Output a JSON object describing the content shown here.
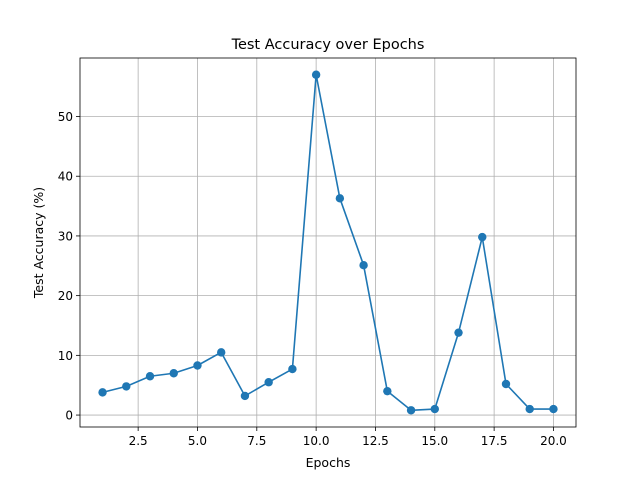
{
  "chart_data": {
    "type": "line",
    "title": "Test Accuracy over Epochs",
    "xlabel": "Epochs",
    "ylabel": "Test Accuracy (%)",
    "xlim": [
      0.05,
      20.95
    ],
    "ylim": [
      -2.0,
      59.8
    ],
    "xticks": [
      2.5,
      5.0,
      7.5,
      10.0,
      12.5,
      15.0,
      17.5,
      20.0
    ],
    "xtick_labels": [
      "2.5",
      "5.0",
      "7.5",
      "10.0",
      "12.5",
      "15.0",
      "17.5",
      "20.0"
    ],
    "yticks": [
      0,
      10,
      20,
      30,
      40,
      50
    ],
    "ytick_labels": [
      "0",
      "10",
      "20",
      "30",
      "40",
      "50"
    ],
    "grid": true,
    "series": [
      {
        "color": "#1f77b4",
        "marker": "circle",
        "x": [
          1,
          2,
          3,
          4,
          5,
          6,
          7,
          8,
          9,
          10,
          11,
          12,
          13,
          14,
          15,
          16,
          17,
          18,
          19,
          20
        ],
        "y": [
          3.8,
          4.8,
          6.5,
          7.0,
          8.3,
          10.5,
          3.2,
          5.5,
          7.7,
          57.0,
          36.3,
          25.1,
          4.0,
          0.8,
          1.0,
          13.8,
          29.8,
          5.2,
          1.0,
          1.0
        ]
      }
    ]
  }
}
